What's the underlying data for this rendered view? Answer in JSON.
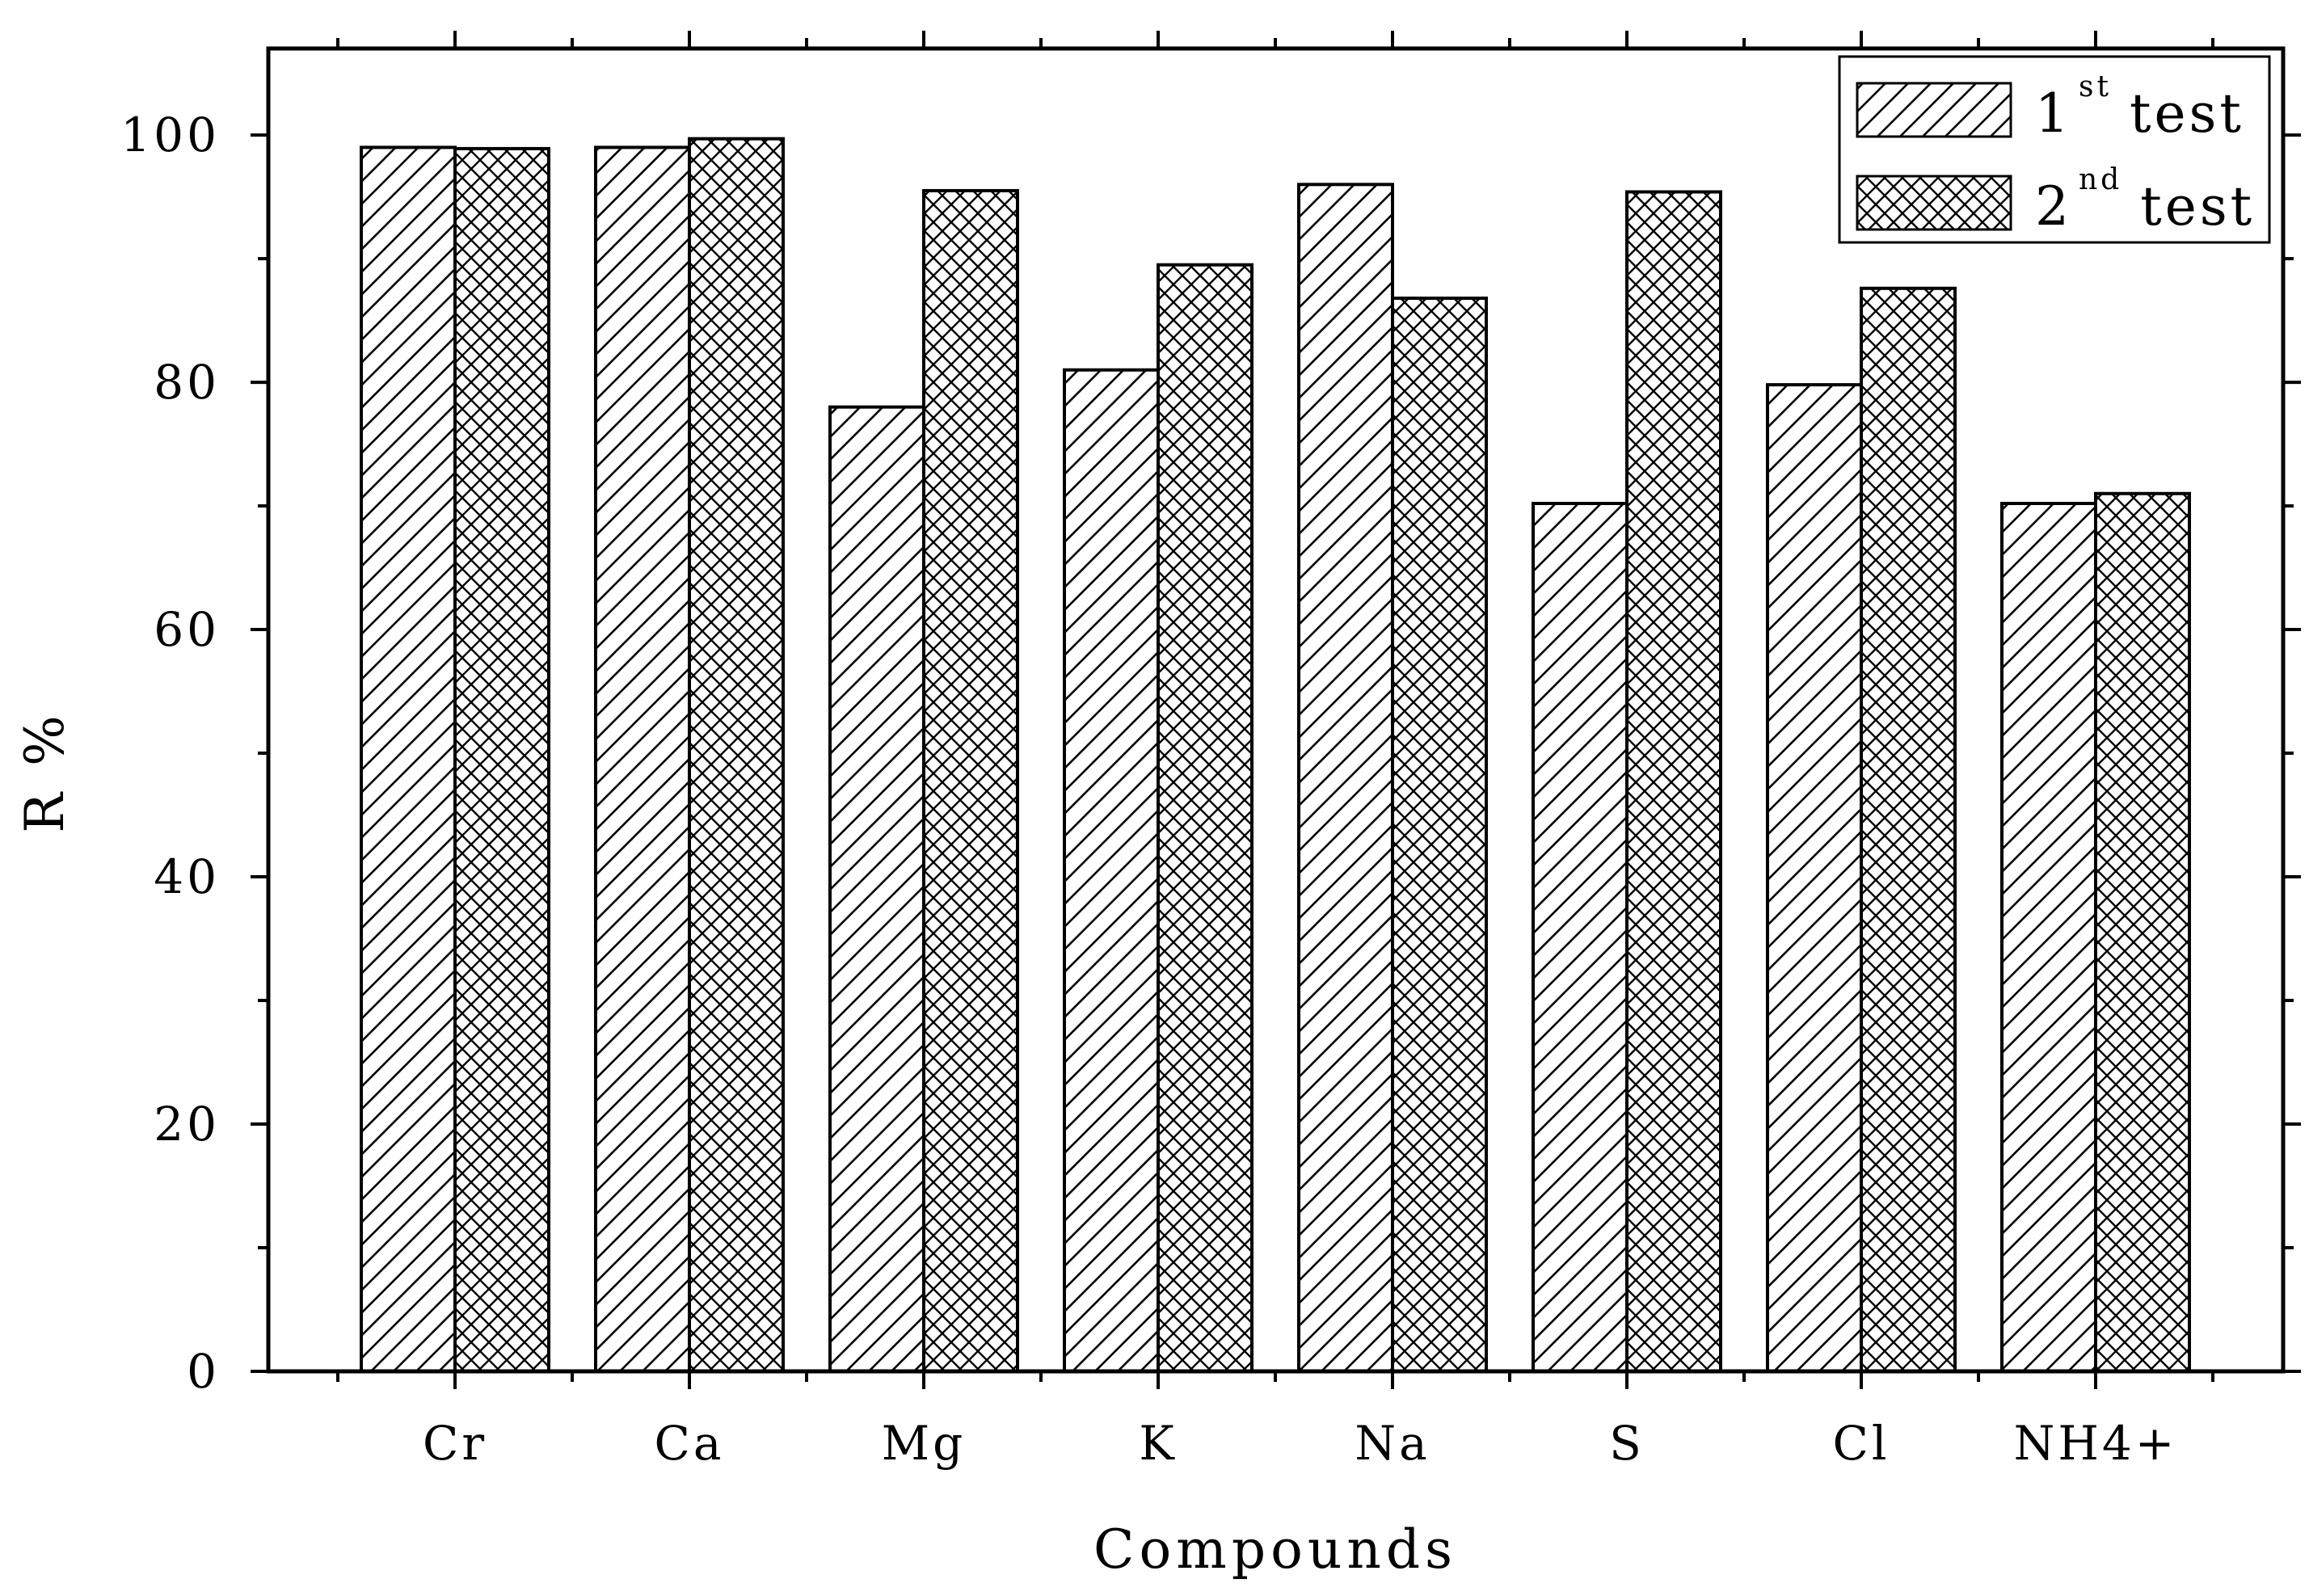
{
  "chart_data": {
    "type": "bar",
    "title": "",
    "xlabel": "Compounds",
    "ylabel": "R %",
    "ylim": [
      0,
      107
    ],
    "yticks": [
      0,
      20,
      40,
      60,
      80,
      100
    ],
    "grid": false,
    "legend_position": "top-right",
    "categories": [
      "Cr",
      "Ca",
      "Mg",
      "K",
      "Na",
      "S",
      "Cl",
      "NH4+"
    ],
    "series": [
      {
        "name": "1st test",
        "label_base": "1",
        "label_sup": "st",
        "label_rest": "test",
        "pattern": "diagonal-hatch",
        "values": [
          99,
          99,
          78,
          81,
          96,
          70.2,
          79.8,
          70.2
        ]
      },
      {
        "name": "2nd test",
        "label_base": "2",
        "label_sup": "nd",
        "label_rest": "test",
        "pattern": "crosshatch",
        "values": [
          98.9,
          99.7,
          95.5,
          89.5,
          86.8,
          95.4,
          87.6,
          71
        ]
      }
    ]
  }
}
